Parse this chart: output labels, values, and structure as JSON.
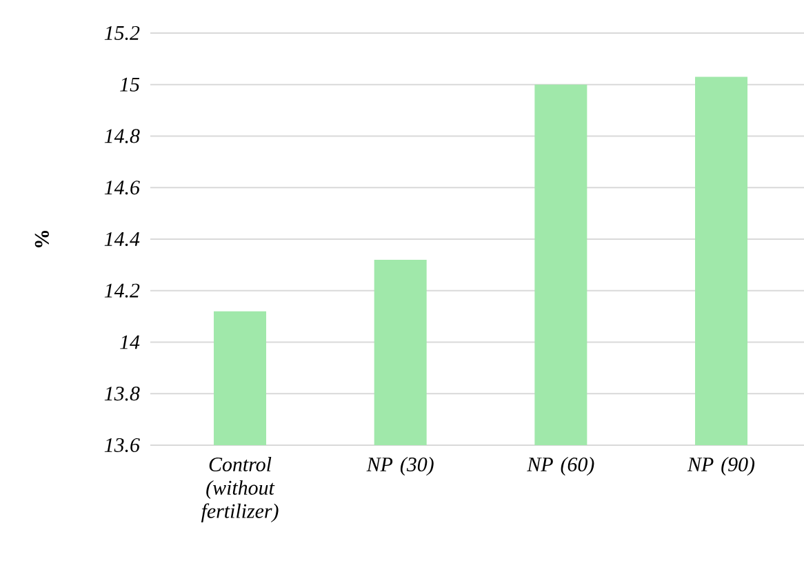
{
  "chart_data": {
    "type": "bar",
    "ylabel": "%",
    "categories": [
      "Control (without fertilizer)",
      "NP (30)",
      "NP (60)",
      "NP (90)"
    ],
    "values": [
      14.12,
      14.32,
      15.0,
      15.03
    ],
    "color": "#a0e8aa",
    "ylim": [
      13.6,
      15.2
    ],
    "yticks": [
      13.6,
      13.8,
      14,
      14.2,
      14.4,
      14.6,
      14.8,
      15,
      15.2
    ],
    "grid": "y"
  }
}
